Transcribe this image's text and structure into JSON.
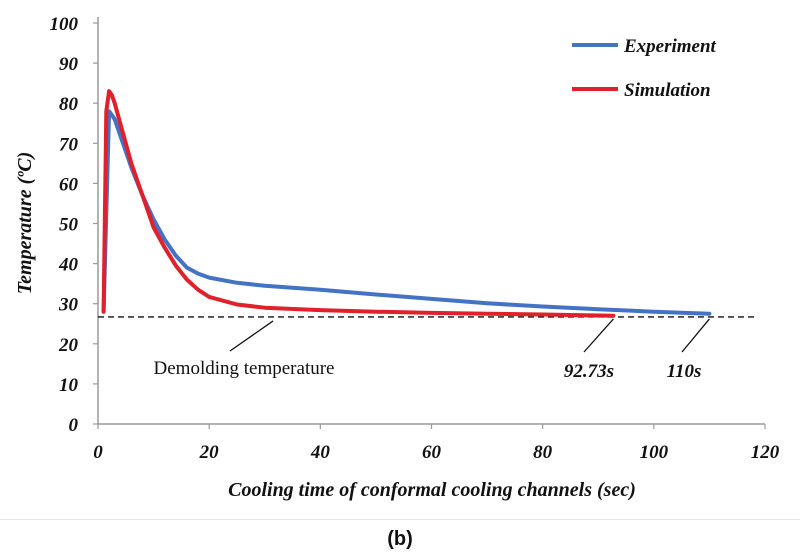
{
  "chart_data": {
    "type": "line",
    "title": "",
    "xlabel": "Cooling time of conformal cooling channels  (sec)",
    "ylabel": "Temperature (ºC)",
    "xlim": [
      0,
      120
    ],
    "ylim": [
      0,
      100
    ],
    "x_ticks": [
      0,
      20,
      40,
      60,
      80,
      100,
      120
    ],
    "y_ticks": [
      0,
      10,
      20,
      30,
      40,
      50,
      60,
      70,
      80,
      90,
      100
    ],
    "grid": false,
    "legend_position": "top-right",
    "series": [
      {
        "name": "Experiment",
        "color": "#4472C4",
        "x": [
          1,
          2,
          3,
          4,
          5,
          6,
          8,
          10,
          12,
          14,
          16,
          18,
          20,
          25,
          30,
          40,
          50,
          60,
          70,
          80,
          90,
          100,
          110
        ],
        "y": [
          28,
          78,
          76,
          72,
          68,
          64,
          57,
          51,
          46,
          42,
          39,
          37.5,
          36.5,
          35.2,
          34.5,
          33.5,
          32.3,
          31.2,
          30.1,
          29.3,
          28.6,
          28.0,
          27.5
        ]
      },
      {
        "name": "Simulation",
        "color": "#E0202A",
        "x": [
          1,
          1.5,
          2,
          2.5,
          3,
          4,
          5,
          6,
          8,
          10,
          12,
          14,
          16,
          18,
          20,
          25,
          30,
          40,
          50,
          60,
          70,
          80,
          92.73
        ],
        "y": [
          28,
          78,
          83,
          82,
          80,
          75,
          70,
          65,
          57,
          49,
          44,
          39.5,
          36,
          33.5,
          31.7,
          29.8,
          29.0,
          28.4,
          28.0,
          27.7,
          27.5,
          27.3,
          27.0
        ]
      }
    ],
    "reference_line": {
      "label": "Demolding temperature",
      "y": 26.7
    },
    "annotations": [
      {
        "text": "Demolding temperature",
        "points_to_x": 31.5
      },
      {
        "text": "92.73s",
        "points_to_x": 92.73
      },
      {
        "text": "110s",
        "points_to_x": 110
      }
    ]
  },
  "caption": "(b)"
}
